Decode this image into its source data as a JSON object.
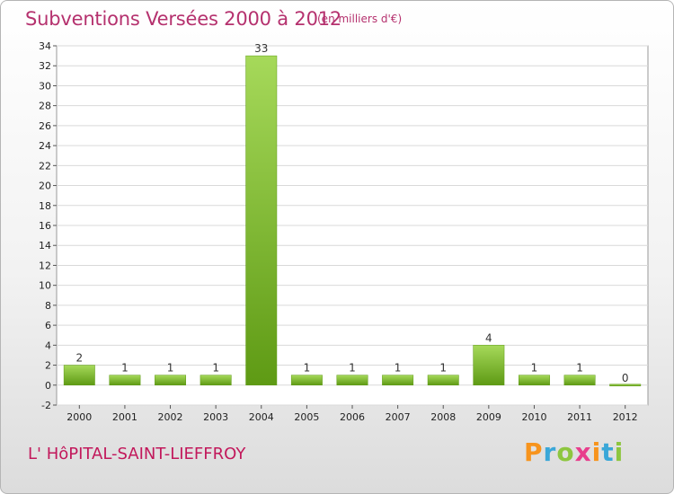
{
  "header": {
    "title": "Subventions Versées 2000 à 2012",
    "unit_note": "(en milliers d'€)"
  },
  "footer": {
    "commune": "L' HôPITAL-SAINT-LIEFFROY",
    "logo_letters": [
      "P",
      "r",
      "o",
      "x",
      "i",
      "t",
      "i"
    ],
    "logo_colors": [
      "#f7941d",
      "#3aa7d8",
      "#8dc63f",
      "#e83e8c",
      "#f7941d",
      "#3aa7d8",
      "#8dc63f"
    ]
  },
  "colors": {
    "bar_light": "#a6d95a",
    "bar_dark": "#5e9a14",
    "grid": "#d9d9d9",
    "axis": "#555555"
  },
  "chart_data": {
    "type": "bar",
    "categories": [
      "2000",
      "2001",
      "2002",
      "2003",
      "2004",
      "2005",
      "2006",
      "2007",
      "2008",
      "2009",
      "2010",
      "2011",
      "2012"
    ],
    "values": [
      2,
      1,
      1,
      1,
      33,
      1,
      1,
      1,
      1,
      4,
      1,
      1,
      0
    ],
    "value_labels": [
      "2",
      "1",
      "1",
      "1",
      "33",
      "1",
      "1",
      "1",
      "1",
      "4",
      "1",
      "1",
      "0"
    ],
    "ylim": [
      -2,
      34
    ],
    "yticks": [
      -2,
      0,
      2,
      4,
      6,
      8,
      10,
      12,
      14,
      16,
      18,
      20,
      22,
      24,
      26,
      28,
      30,
      32,
      34
    ],
    "grid": true,
    "legend": "none"
  }
}
